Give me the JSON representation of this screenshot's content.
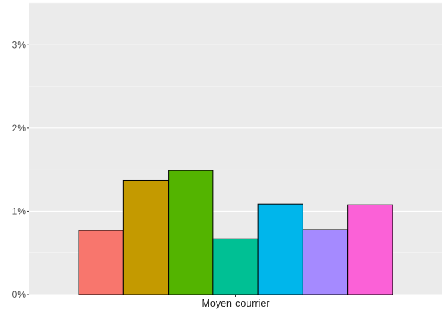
{
  "chart_data": {
    "type": "bar",
    "categories": [
      "Moyen-courrier"
    ],
    "series": [
      {
        "values": [
          0.77
        ],
        "color": "#f8766d"
      },
      {
        "values": [
          1.37
        ],
        "color": "#c49a00"
      },
      {
        "values": [
          1.49
        ],
        "color": "#53b400"
      },
      {
        "values": [
          0.67
        ],
        "color": "#00c094"
      },
      {
        "values": [
          1.09
        ],
        "color": "#00b6eb"
      },
      {
        "values": [
          0.78
        ],
        "color": "#a58aff"
      },
      {
        "values": [
          1.08
        ],
        "color": "#fb61d7"
      }
    ],
    "yticks": [
      {
        "value": 0,
        "label": "0%"
      },
      {
        "value": 1,
        "label": "1%"
      },
      {
        "value": 2,
        "label": "2%"
      },
      {
        "value": 3,
        "label": "3%"
      }
    ],
    "ylim": [
      0,
      3.5
    ],
    "grid": true,
    "legend": "none",
    "background": "#ebebeb",
    "bar_outline": "#000000"
  }
}
